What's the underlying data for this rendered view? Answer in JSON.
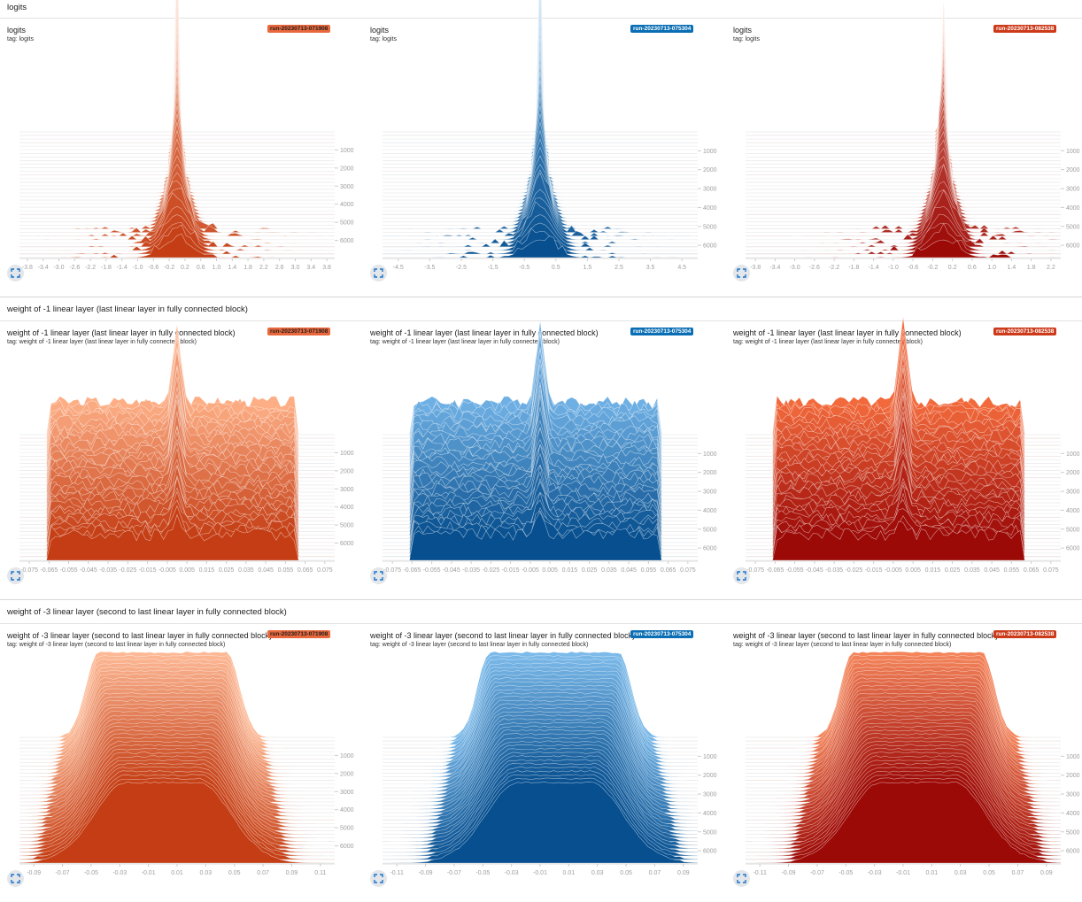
{
  "sections": [
    {
      "title": "logits",
      "cards": [
        {
          "title": "logits",
          "tag": "tag: logits",
          "run": "run-20230713-071908",
          "run_color": "#e8673c",
          "badge_text": "#1f1f1f",
          "palette": [
            "#fdbb9b",
            "#c43d14"
          ],
          "chart_data": {
            "type": "histogram-offset",
            "shape": "peak",
            "xlim": [
              -4.0,
              4.0
            ],
            "x_ticks": [
              "-3.8",
              "-3.4",
              "-3.0",
              "-2.6",
              "-2.2",
              "-1.8",
              "-1.4",
              "-1.0",
              "-0.6",
              "-0.2",
              "0.2",
              "0.6",
              "1.0",
              "1.4",
              "1.8",
              "2.2",
              "2.6",
              "3.0",
              "3.4",
              "3.8"
            ],
            "x_tick_values": [
              -3.8,
              -3.4,
              -3.0,
              -2.6,
              -2.2,
              -1.8,
              -1.4,
              -1.0,
              -0.6,
              -0.2,
              0.2,
              0.6,
              1.0,
              1.4,
              1.8,
              2.2,
              2.6,
              3.0,
              3.4,
              3.8
            ],
            "y_ticks": [
              "1000",
              "2000",
              "3000",
              "4000",
              "5000",
              "6000"
            ],
            "y_tick_values": [
              1000,
              2000,
              3000,
              4000,
              5000,
              6000
            ],
            "ylim": [
              0,
              6950
            ]
          }
        },
        {
          "title": "logits",
          "tag": "tag: logits",
          "run": "run-20230713-075304",
          "run_color": "#0a6eb4",
          "badge_text": "#ffffff",
          "palette": [
            "#86bfe8",
            "#074f8f"
          ],
          "chart_data": {
            "type": "histogram-offset",
            "shape": "peak",
            "xlim": [
              -5.0,
              5.0
            ],
            "x_ticks": [
              "-4.5",
              "-3.5",
              "-2.5",
              "-1.5",
              "-0.5",
              "0.5",
              "1.5",
              "2.5",
              "3.5",
              "4.5"
            ],
            "x_tick_values": [
              -4.5,
              -3.5,
              -2.5,
              -1.5,
              -0.5,
              0.5,
              1.5,
              2.5,
              3.5,
              4.5
            ],
            "y_ticks": [
              "1000",
              "2000",
              "3000",
              "4000",
              "5000",
              "6000"
            ],
            "y_tick_values": [
              1000,
              2000,
              3000,
              4000,
              5000,
              6000
            ],
            "ylim": [
              0,
              6650
            ]
          }
        },
        {
          "title": "logits",
          "tag": "tag: logits",
          "run": "run-20230713-082538",
          "run_color": "#cc3a1a",
          "badge_text": "#ffffff",
          "palette": [
            "#f8b49a",
            "#9c0a07"
          ],
          "chart_data": {
            "type": "histogram-offset",
            "shape": "peak",
            "xlim": [
              -4.0,
              2.4
            ],
            "x_ticks": [
              "-3.8",
              "-3.4",
              "-3.0",
              "-2.6",
              "-2.2",
              "-1.8",
              "-1.4",
              "-1.0",
              "-0.6",
              "-0.2",
              "0.2",
              "0.6",
              "1.0",
              "1.4",
              "1.8",
              "2.2"
            ],
            "x_tick_values": [
              -3.8,
              -3.4,
              -3.0,
              -2.6,
              -2.2,
              -1.8,
              -1.4,
              -1.0,
              -0.6,
              -0.2,
              0.2,
              0.6,
              1.0,
              1.4,
              1.8,
              2.2
            ],
            "y_ticks": [
              "1000",
              "2000",
              "3000",
              "4000",
              "5000",
              "6000"
            ],
            "y_tick_values": [
              1000,
              2000,
              3000,
              4000,
              5000,
              6000
            ],
            "ylim": [
              0,
              6650
            ]
          }
        }
      ]
    },
    {
      "title": "weight of -1 linear layer (last linear layer in fully connected block)",
      "cards": [
        {
          "title": "weight of -1 linear layer (last linear layer in fully connected block)",
          "tag": "tag: weight of -1 linear layer (last linear layer in fully connected block)",
          "run": "run-20230713-071908",
          "run_color": "#e8673c",
          "badge_text": "#1f1f1f",
          "palette": [
            "#fdae85",
            "#c43d14"
          ],
          "chart_data": {
            "type": "histogram-offset",
            "shape": "plateau-spike",
            "xlim": [
              -0.08,
              0.08
            ],
            "x_ticks": [
              "-0.075",
              "-0.065",
              "-0.055",
              "-0.045",
              "-0.035",
              "-0.025",
              "-0.015",
              "-0.005",
              "0.005",
              "0.015",
              "0.025",
              "0.035",
              "0.045",
              "0.055",
              "0.065",
              "0.075"
            ],
            "x_tick_values": [
              -0.075,
              -0.065,
              -0.055,
              -0.045,
              -0.035,
              -0.025,
              -0.015,
              -0.005,
              0.005,
              0.015,
              0.025,
              0.035,
              0.045,
              0.055,
              0.065,
              0.075
            ],
            "y_ticks": [
              "1000",
              "2000",
              "3000",
              "4000",
              "5000",
              "6000"
            ],
            "y_tick_values": [
              1000,
              2000,
              3000,
              4000,
              5000,
              6000
            ],
            "ylim": [
              0,
              6950
            ]
          }
        },
        {
          "title": "weight of -1 linear layer (last linear layer in fully connected block)",
          "tag": "tag: weight of -1 linear layer (last linear layer in fully connected block)",
          "run": "run-20230713-075304",
          "run_color": "#0a6eb4",
          "badge_text": "#ffffff",
          "palette": [
            "#6fb0e4",
            "#074f8f"
          ],
          "chart_data": {
            "type": "histogram-offset",
            "shape": "plateau-spike",
            "xlim": [
              -0.08,
              0.08
            ],
            "x_ticks": [
              "-0.075",
              "-0.065",
              "-0.055",
              "-0.045",
              "-0.035",
              "-0.025",
              "-0.015",
              "-0.005",
              "0.005",
              "0.015",
              "0.025",
              "0.035",
              "0.045",
              "0.055",
              "0.065",
              "0.075"
            ],
            "x_tick_values": [
              -0.075,
              -0.065,
              -0.055,
              -0.045,
              -0.035,
              -0.025,
              -0.015,
              -0.005,
              0.005,
              0.015,
              0.025,
              0.035,
              0.045,
              0.055,
              0.065,
              0.075
            ],
            "y_ticks": [
              "1000",
              "2000",
              "3000",
              "4000",
              "5000",
              "6000"
            ],
            "y_tick_values": [
              1000,
              2000,
              3000,
              4000,
              5000,
              6000
            ],
            "ylim": [
              0,
              6650
            ]
          }
        },
        {
          "title": "weight of -1 linear layer (last linear layer in fully connected block)",
          "tag": "tag: weight of -1 linear layer (last linear layer in fully connected block)",
          "run": "run-20230713-082538",
          "run_color": "#cc3a1a",
          "badge_text": "#ffffff",
          "palette": [
            "#f26a3c",
            "#9c0a07"
          ],
          "chart_data": {
            "type": "histogram-offset",
            "shape": "plateau-spike",
            "xlim": [
              -0.08,
              0.08
            ],
            "x_ticks": [
              "-0.075",
              "-0.065",
              "-0.055",
              "-0.045",
              "-0.035",
              "-0.025",
              "-0.015",
              "-0.005",
              "0.005",
              "0.015",
              "0.025",
              "0.035",
              "0.045",
              "0.055",
              "0.065",
              "0.075"
            ],
            "x_tick_values": [
              -0.075,
              -0.065,
              -0.055,
              -0.045,
              -0.035,
              -0.025,
              -0.015,
              -0.005,
              0.005,
              0.015,
              0.025,
              0.035,
              0.045,
              0.055,
              0.065,
              0.075
            ],
            "y_ticks": [
              "1000",
              "2000",
              "3000",
              "4000",
              "5000",
              "6000"
            ],
            "y_tick_values": [
              1000,
              2000,
              3000,
              4000,
              5000,
              6000
            ],
            "ylim": [
              0,
              6650
            ]
          }
        }
      ]
    },
    {
      "title": "weight of -3 linear layer (second to last linear layer in fully connected block)",
      "cards": [
        {
          "title": "weight of -3 linear layer (second to last linear layer in fully connected block)",
          "tag": "tag: weight of -3 linear layer (second to last linear layer in fully connected block)",
          "run": "run-20230713-071908",
          "run_color": "#e8673c",
          "badge_text": "#1f1f1f",
          "palette": [
            "#fdb995",
            "#c43d14"
          ],
          "chart_data": {
            "type": "histogram-offset",
            "shape": "trapezoid",
            "xlim": [
              -0.1,
              0.12
            ],
            "x_ticks": [
              "-0.09",
              "-0.07",
              "-0.05",
              "-0.03",
              "-0.01",
              "0.01",
              "0.03",
              "0.05",
              "0.07",
              "0.09",
              "0.11"
            ],
            "x_tick_values": [
              -0.09,
              -0.07,
              -0.05,
              -0.03,
              -0.01,
              0.01,
              0.03,
              0.05,
              0.07,
              0.09,
              0.11
            ],
            "y_ticks": [
              "1000",
              "2000",
              "3000",
              "4000",
              "5000",
              "6000"
            ],
            "y_tick_values": [
              1000,
              2000,
              3000,
              4000,
              5000,
              6000
            ],
            "ylim": [
              0,
              6950
            ]
          }
        },
        {
          "title": "weight of -3 linear layer (second to last linear layer in fully connected block)",
          "tag": "tag: weight of -3 linear layer (second to last linear layer in fully connected block)",
          "run": "run-20230713-075304",
          "run_color": "#0a6eb4",
          "badge_text": "#ffffff",
          "palette": [
            "#7cbaea",
            "#074f8f"
          ],
          "chart_data": {
            "type": "histogram-offset",
            "shape": "trapezoid",
            "xlim": [
              -0.12,
              0.1
            ],
            "x_ticks": [
              "-0.11",
              "-0.09",
              "-0.07",
              "-0.05",
              "-0.03",
              "-0.01",
              "0.01",
              "0.03",
              "0.05",
              "0.07",
              "0.09"
            ],
            "x_tick_values": [
              -0.11,
              -0.09,
              -0.07,
              -0.05,
              -0.03,
              -0.01,
              0.01,
              0.03,
              0.05,
              0.07,
              0.09
            ],
            "y_ticks": [
              "1000",
              "2000",
              "3000",
              "4000",
              "5000",
              "6000"
            ],
            "y_tick_values": [
              1000,
              2000,
              3000,
              4000,
              5000,
              6000
            ],
            "ylim": [
              0,
              6650
            ]
          }
        },
        {
          "title": "weight of -3 linear layer (second to last linear layer in fully connected block)",
          "tag": "tag: weight of -3 linear layer (second to last linear layer in fully connected block)",
          "run": "run-20230713-082538",
          "run_color": "#cc3a1a",
          "badge_text": "#ffffff",
          "palette": [
            "#f4845a",
            "#9c0a07"
          ],
          "chart_data": {
            "type": "histogram-offset",
            "shape": "trapezoid",
            "xlim": [
              -0.12,
              0.1
            ],
            "x_ticks": [
              "-0.11",
              "-0.09",
              "-0.07",
              "-0.05",
              "-0.03",
              "-0.01",
              "0.01",
              "0.03",
              "0.05",
              "0.07",
              "0.09"
            ],
            "x_tick_values": [
              -0.11,
              -0.09,
              -0.07,
              -0.05,
              -0.03,
              -0.01,
              0.01,
              0.03,
              0.05,
              0.07,
              0.09
            ],
            "y_ticks": [
              "1000",
              "2000",
              "3000",
              "4000",
              "5000",
              "6000"
            ],
            "y_tick_values": [
              1000,
              2000,
              3000,
              4000,
              5000,
              6000
            ],
            "ylim": [
              0,
              6650
            ]
          }
        }
      ]
    }
  ],
  "icons": {
    "expand": "fullscreen-expand-icon"
  }
}
